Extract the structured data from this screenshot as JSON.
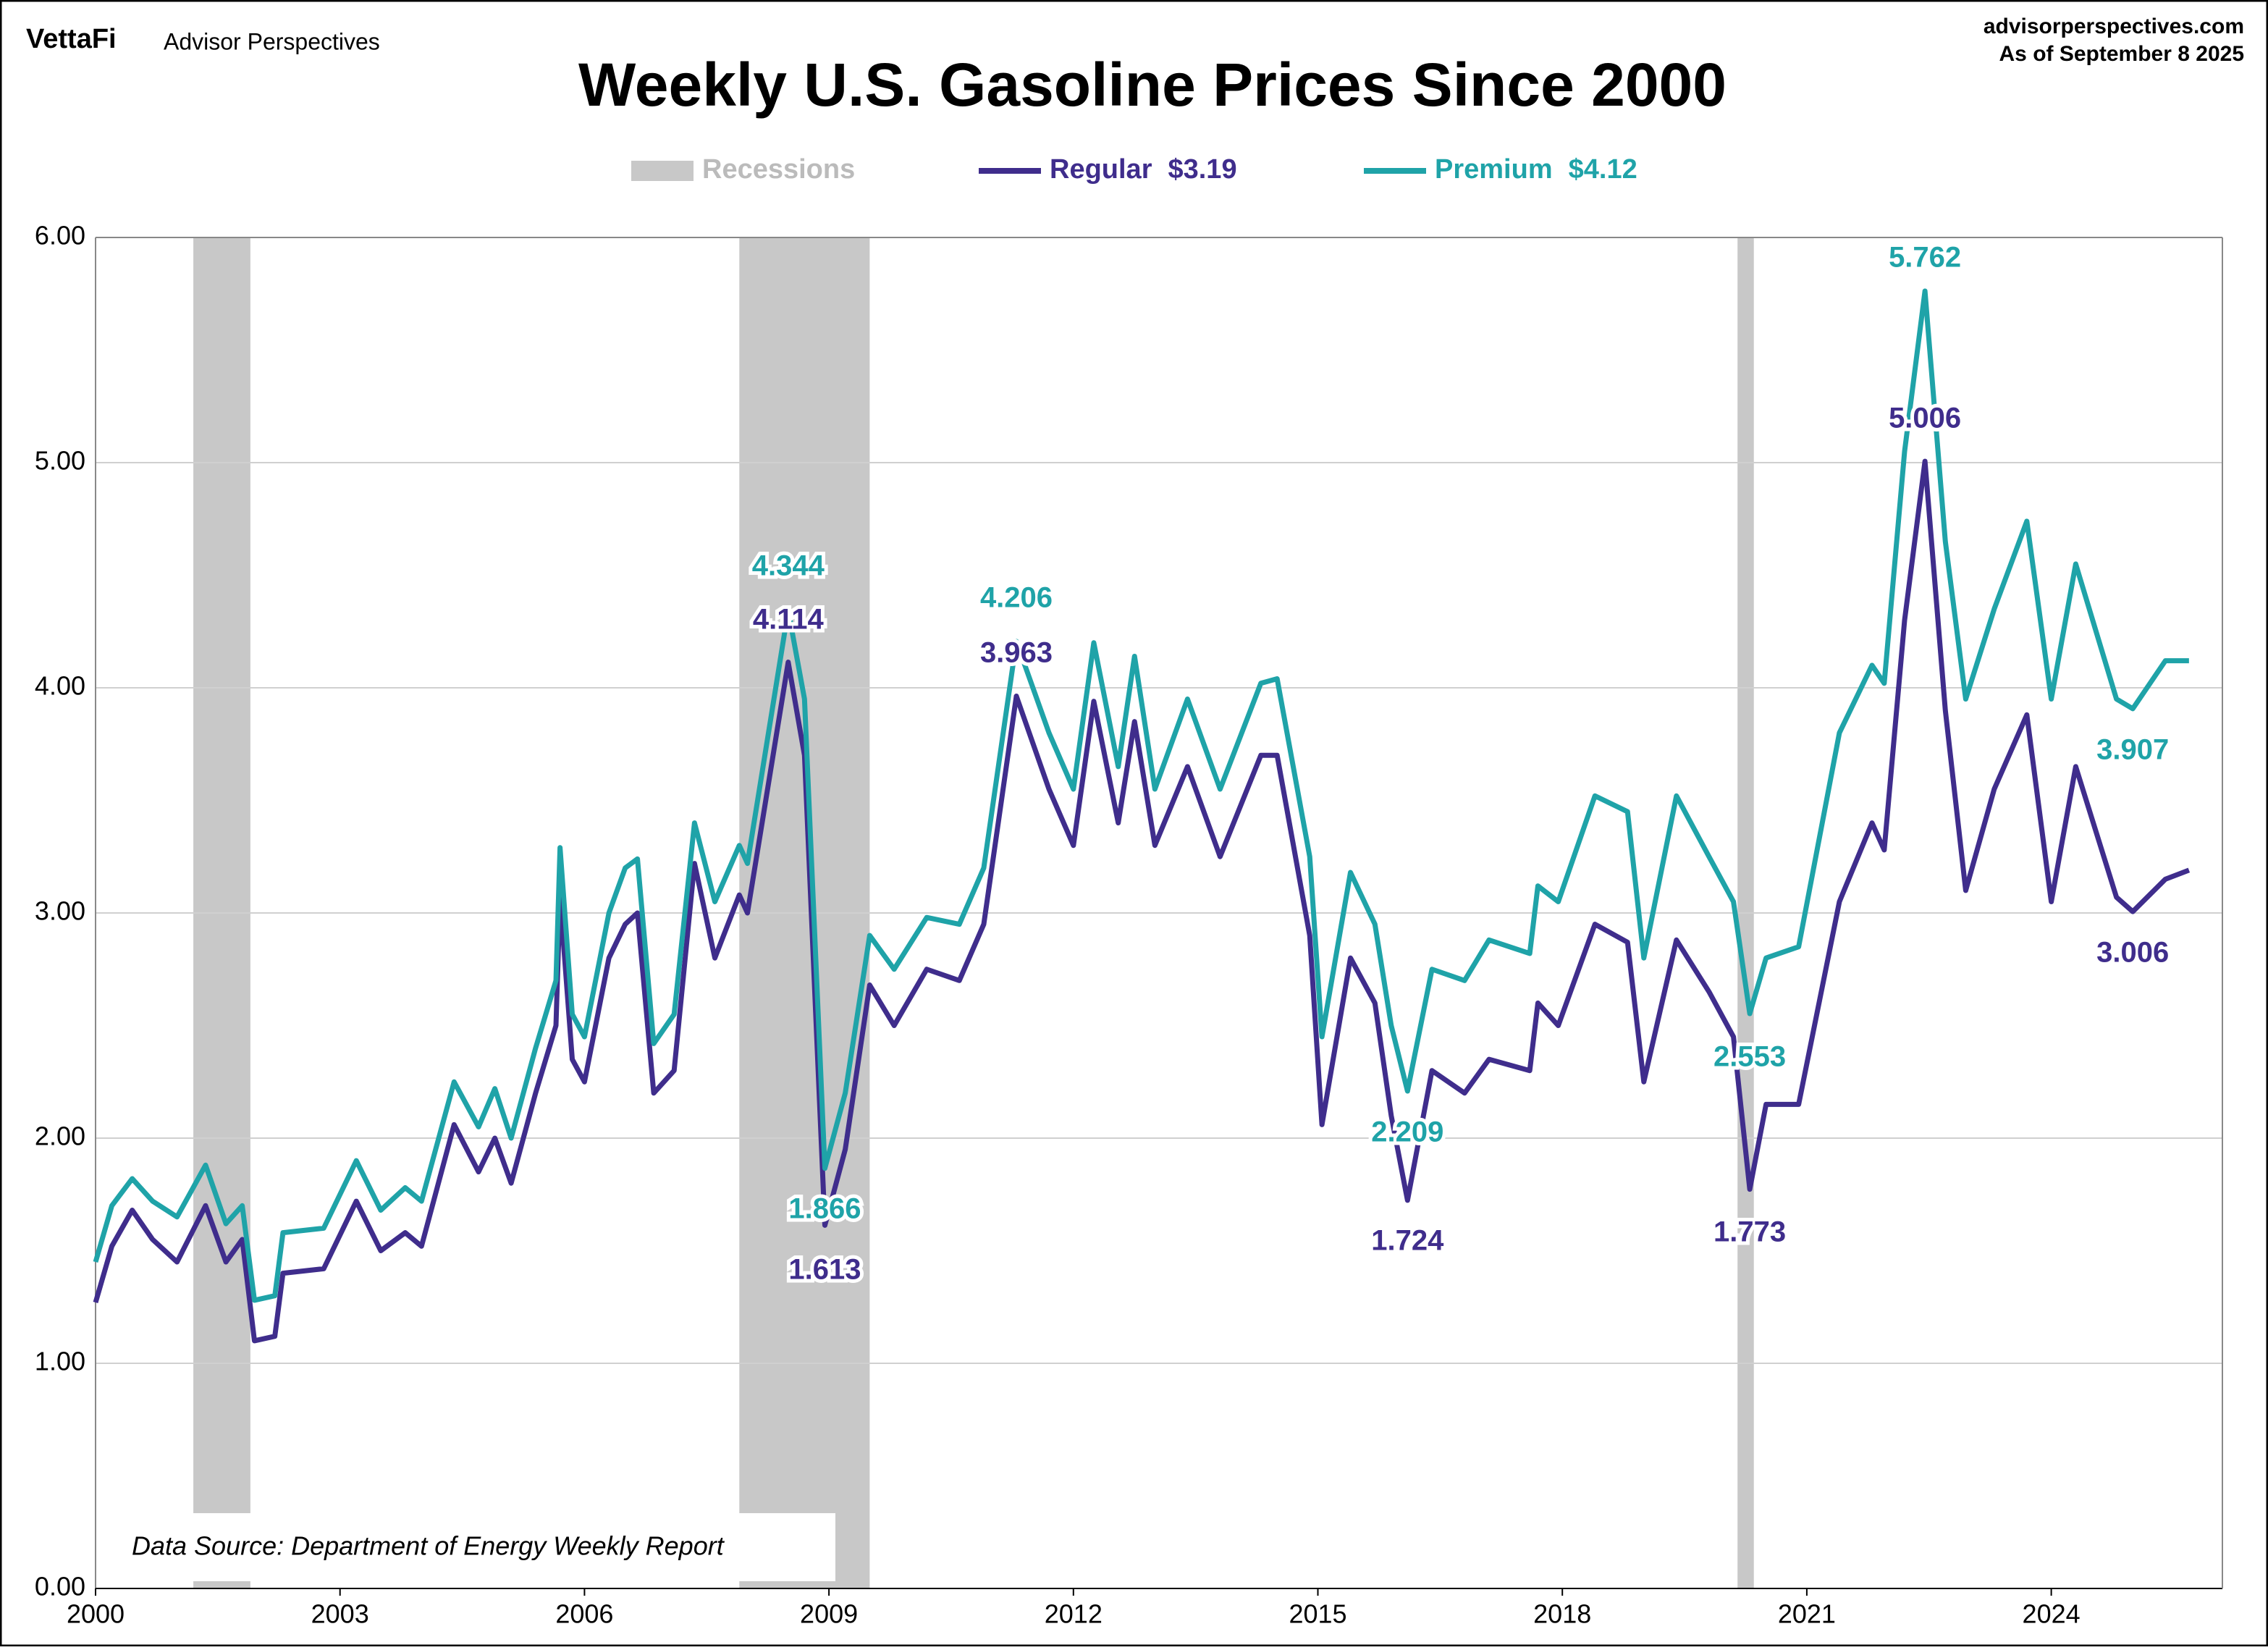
{
  "brand": "VettaFi",
  "brand_sub": "Advisor Perspectives",
  "site": "advisorperspectives.com",
  "as_of": "As of September 8 2025",
  "chart_data": {
    "type": "line",
    "title": "Weekly U.S. Gasoline Prices Since 2000",
    "note": "Data Source: Department of Energy Weekly Report",
    "xlim": [
      2000,
      2026.1
    ],
    "xticks": [
      2000,
      2003,
      2006,
      2009,
      2012,
      2015,
      2018,
      2021,
      2024
    ],
    "ylim": [
      0,
      6
    ],
    "yticks": [
      {
        "value": 0,
        "label": "0.00"
      },
      {
        "value": 1,
        "label": "1.00"
      },
      {
        "value": 2,
        "label": "2.00"
      },
      {
        "value": 3,
        "label": "3.00"
      },
      {
        "value": 4,
        "label": "4.00"
      },
      {
        "value": 5,
        "label": "5.00"
      },
      {
        "value": 6,
        "label": "6.00"
      }
    ],
    "grid": true,
    "recessions": {
      "name": "Recessions",
      "color": "#c8c8c8",
      "spans": [
        [
          2001.2,
          2001.9
        ],
        [
          2007.9,
          2009.5
        ],
        [
          2020.15,
          2020.35
        ]
      ]
    },
    "x": [
      2000.0,
      2000.2,
      2000.45,
      2000.7,
      2001.0,
      2001.35,
      2001.6,
      2001.8,
      2001.95,
      2002.2,
      2002.3,
      2002.8,
      2003.2,
      2003.5,
      2003.8,
      2004.0,
      2004.4,
      2004.7,
      2004.9,
      2005.1,
      2005.4,
      2005.65,
      2005.7,
      2005.85,
      2006.0,
      2006.3,
      2006.5,
      2006.65,
      2006.85,
      2007.1,
      2007.35,
      2007.6,
      2007.9,
      2008.0,
      2008.5,
      2008.7,
      2008.95,
      2009.2,
      2009.5,
      2009.8,
      2010.2,
      2010.6,
      2010.9,
      2011.3,
      2011.7,
      2012.0,
      2012.25,
      2012.55,
      2012.75,
      2013.0,
      2013.4,
      2013.8,
      2014.3,
      2014.5,
      2014.9,
      2015.05,
      2015.4,
      2015.7,
      2015.9,
      2016.1,
      2016.4,
      2016.8,
      2017.1,
      2017.6,
      2017.7,
      2017.95,
      2018.4,
      2018.8,
      2019.0,
      2019.4,
      2019.8,
      2020.1,
      2020.3,
      2020.5,
      2020.9,
      2021.4,
      2021.8,
      2021.95,
      2022.2,
      2022.45,
      2022.7,
      2022.95,
      2023.3,
      2023.7,
      2024.0,
      2024.3,
      2024.8,
      2025.0,
      2025.4,
      2025.69
    ],
    "series": [
      {
        "name": "Regular",
        "color": "#3f2d8c",
        "latest": {
          "value": 3.19,
          "label": "$3.19"
        },
        "values": [
          1.27,
          1.52,
          1.68,
          1.55,
          1.45,
          1.7,
          1.45,
          1.55,
          1.1,
          1.12,
          1.4,
          1.42,
          1.72,
          1.5,
          1.58,
          1.52,
          2.06,
          1.85,
          2.0,
          1.8,
          2.2,
          2.5,
          3.07,
          2.35,
          2.25,
          2.8,
          2.95,
          3.0,
          2.2,
          2.3,
          3.22,
          2.8,
          3.08,
          3.0,
          4.114,
          3.7,
          1.613,
          1.95,
          2.68,
          2.5,
          2.75,
          2.7,
          2.95,
          3.963,
          3.55,
          3.3,
          3.94,
          3.4,
          3.85,
          3.3,
          3.65,
          3.25,
          3.7,
          3.7,
          2.9,
          2.06,
          2.8,
          2.6,
          2.1,
          1.724,
          2.3,
          2.2,
          2.35,
          2.3,
          2.6,
          2.5,
          2.95,
          2.87,
          2.25,
          2.88,
          2.65,
          2.45,
          1.773,
          2.15,
          2.15,
          3.05,
          3.4,
          3.28,
          4.3,
          5.006,
          3.9,
          3.1,
          3.55,
          3.88,
          3.05,
          3.65,
          3.07,
          3.006,
          3.15,
          3.19
        ]
      },
      {
        "name": "Premium",
        "color": "#1fa3a8",
        "latest": {
          "value": 4.12,
          "label": "$4.12"
        },
        "values": [
          1.45,
          1.7,
          1.82,
          1.72,
          1.65,
          1.88,
          1.62,
          1.7,
          1.28,
          1.3,
          1.58,
          1.6,
          1.9,
          1.68,
          1.78,
          1.72,
          2.25,
          2.05,
          2.22,
          2.0,
          2.4,
          2.7,
          3.29,
          2.55,
          2.45,
          3.0,
          3.2,
          3.24,
          2.42,
          2.55,
          3.4,
          3.05,
          3.3,
          3.22,
          4.344,
          3.95,
          1.866,
          2.2,
          2.9,
          2.75,
          2.98,
          2.95,
          3.2,
          4.206,
          3.8,
          3.55,
          4.2,
          3.65,
          4.14,
          3.55,
          3.95,
          3.55,
          4.02,
          4.04,
          3.25,
          2.45,
          3.18,
          2.95,
          2.5,
          2.209,
          2.75,
          2.7,
          2.88,
          2.82,
          3.12,
          3.05,
          3.52,
          3.45,
          2.8,
          3.52,
          3.25,
          3.05,
          2.553,
          2.8,
          2.85,
          3.8,
          4.1,
          4.02,
          5.05,
          5.762,
          4.65,
          3.95,
          4.35,
          4.74,
          3.95,
          4.55,
          3.95,
          3.907,
          4.12,
          4.12
        ]
      }
    ],
    "annotations": [
      {
        "series": 1,
        "x": 2008.5,
        "value": 4.344
      },
      {
        "series": 0,
        "x": 2008.5,
        "value": 4.114
      },
      {
        "series": 1,
        "x": 2011.3,
        "value": 4.206
      },
      {
        "series": 0,
        "x": 2011.3,
        "value": 3.963
      },
      {
        "series": 1,
        "x": 2008.95,
        "value": 1.866
      },
      {
        "series": 0,
        "x": 2008.95,
        "value": 1.613
      },
      {
        "series": 1,
        "x": 2016.1,
        "value": 2.209
      },
      {
        "series": 0,
        "x": 2016.1,
        "value": 1.724
      },
      {
        "series": 1,
        "x": 2020.3,
        "value": 2.553
      },
      {
        "series": 0,
        "x": 2020.3,
        "value": 1.773
      },
      {
        "series": 1,
        "x": 2022.45,
        "value": 5.762
      },
      {
        "series": 0,
        "x": 2022.45,
        "value": 5.006
      },
      {
        "series": 1,
        "x": 2025.0,
        "value": 3.907
      },
      {
        "series": 0,
        "x": 2025.0,
        "value": 3.006
      }
    ]
  }
}
